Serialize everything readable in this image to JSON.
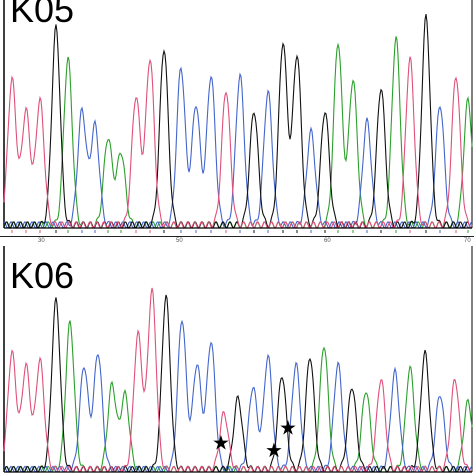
{
  "chart_data": [
    {
      "type": "line",
      "panel_label": "K05",
      "colors": {
        "A": "#2ca02c",
        "C": "#4466cc",
        "G": "#111111",
        "T": "#e0507a"
      },
      "ruler_labels": [
        "30",
        "50",
        "60",
        "70"
      ],
      "peaks": [
        {
          "x": 12,
          "base": "T",
          "h": 0.7
        },
        {
          "x": 26,
          "base": "T",
          "h": 0.55
        },
        {
          "x": 40,
          "base": "T",
          "h": 0.6
        },
        {
          "x": 56,
          "base": "G",
          "h": 0.95
        },
        {
          "x": 68,
          "base": "A",
          "h": 0.8
        },
        {
          "x": 82,
          "base": "C",
          "h": 0.55
        },
        {
          "x": 95,
          "base": "C",
          "h": 0.48
        },
        {
          "x": 108,
          "base": "A",
          "h": 0.42
        },
        {
          "x": 121,
          "base": "A",
          "h": 0.35
        },
        {
          "x": 136,
          "base": "T",
          "h": 0.62
        },
        {
          "x": 150,
          "base": "T",
          "h": 0.8
        },
        {
          "x": 164,
          "base": "G",
          "h": 0.85
        },
        {
          "x": 181,
          "base": "C",
          "h": 0.76
        },
        {
          "x": 196,
          "base": "C",
          "h": 0.58
        },
        {
          "x": 211,
          "base": "C",
          "h": 0.72
        },
        {
          "x": 226,
          "base": "T",
          "h": 0.65
        },
        {
          "x": 240,
          "base": "C",
          "h": 0.72
        },
        {
          "x": 254,
          "base": "G",
          "h": 0.55
        },
        {
          "x": 268,
          "base": "C",
          "h": 0.64
        },
        {
          "x": 283,
          "base": "G",
          "h": 0.88
        },
        {
          "x": 297,
          "base": "G",
          "h": 0.82
        },
        {
          "x": 311,
          "base": "C",
          "h": 0.45
        },
        {
          "x": 325,
          "base": "G",
          "h": 0.55
        },
        {
          "x": 338,
          "base": "A",
          "h": 0.88
        },
        {
          "x": 353,
          "base": "A",
          "h": 0.7
        },
        {
          "x": 367,
          "base": "C",
          "h": 0.5
        },
        {
          "x": 381,
          "base": "G",
          "h": 0.66
        },
        {
          "x": 396,
          "base": "A",
          "h": 0.9
        },
        {
          "x": 410,
          "base": "T",
          "h": 0.8
        },
        {
          "x": 426,
          "base": "G",
          "h": 1.0
        },
        {
          "x": 440,
          "base": "C",
          "h": 0.58
        },
        {
          "x": 456,
          "base": "T",
          "h": 0.72
        },
        {
          "x": 468,
          "base": "A",
          "h": 0.6
        }
      ]
    },
    {
      "type": "line",
      "panel_label": "K06",
      "colors": {
        "A": "#2ca02c",
        "C": "#4466cc",
        "G": "#111111",
        "T": "#e0507a"
      },
      "peaks": [
        {
          "x": 12,
          "base": "T",
          "h": 0.62
        },
        {
          "x": 26,
          "base": "T",
          "h": 0.55
        },
        {
          "x": 40,
          "base": "T",
          "h": 0.58
        },
        {
          "x": 56,
          "base": "G",
          "h": 0.9
        },
        {
          "x": 70,
          "base": "A",
          "h": 0.78
        },
        {
          "x": 84,
          "base": "C",
          "h": 0.55
        },
        {
          "x": 98,
          "base": "C",
          "h": 0.62
        },
        {
          "x": 112,
          "base": "A",
          "h": 0.45
        },
        {
          "x": 125,
          "base": "A",
          "h": 0.4
        },
        {
          "x": 138,
          "base": "T",
          "h": 0.72
        },
        {
          "x": 152,
          "base": "T",
          "h": 0.95
        },
        {
          "x": 166,
          "base": "G",
          "h": 0.92
        },
        {
          "x": 182,
          "base": "C",
          "h": 0.8
        },
        {
          "x": 197,
          "base": "C",
          "h": 0.56
        },
        {
          "x": 211,
          "base": "C",
          "h": 0.68
        },
        {
          "x": 224,
          "base": "T",
          "h": 0.3
        },
        {
          "x": 238,
          "base": "G",
          "h": 0.38
        },
        {
          "x": 253,
          "base": "C",
          "h": 0.44
        },
        {
          "x": 268,
          "base": "C",
          "h": 0.6
        },
        {
          "x": 282,
          "base": "G",
          "h": 0.5
        },
        {
          "x": 296,
          "base": "C",
          "h": 0.56
        },
        {
          "x": 310,
          "base": "G",
          "h": 0.6
        },
        {
          "x": 324,
          "base": "A",
          "h": 0.66
        },
        {
          "x": 338,
          "base": "C",
          "h": 0.56
        },
        {
          "x": 352,
          "base": "G",
          "h": 0.44
        },
        {
          "x": 366,
          "base": "A",
          "h": 0.42
        },
        {
          "x": 381,
          "base": "T",
          "h": 0.48
        },
        {
          "x": 395,
          "base": "C",
          "h": 0.52
        },
        {
          "x": 410,
          "base": "A",
          "h": 0.54
        },
        {
          "x": 425,
          "base": "G",
          "h": 0.62
        },
        {
          "x": 440,
          "base": "C",
          "h": 0.4
        },
        {
          "x": 455,
          "base": "T",
          "h": 0.48
        },
        {
          "x": 468,
          "base": "A",
          "h": 0.36
        }
      ],
      "stars": [
        {
          "x": 221,
          "y": 0.88
        },
        {
          "x": 274,
          "y": 0.92
        },
        {
          "x": 288,
          "y": 0.8
        }
      ]
    }
  ]
}
